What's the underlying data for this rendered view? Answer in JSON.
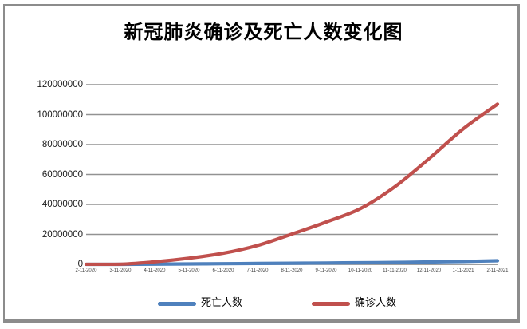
{
  "chart_data": {
    "type": "line",
    "title": "新冠肺炎确诊及死亡人数变化图",
    "categories": [
      "2-11-2020",
      "3-11-2020",
      "4-11-2020",
      "5-11-2020",
      "6-11-2020",
      "7-11-2020",
      "8-11-2020",
      "9-11-2020",
      "10-11-2020",
      "11-11-2020",
      "12-11-2020",
      "1-11-2021",
      "2-11-2021"
    ],
    "series": [
      {
        "key": "deaths",
        "name": "死亡人数",
        "color": "#4F81BD",
        "values": [
          1100,
          4300,
          102000,
          283000,
          420000,
          560000,
          737000,
          905000,
          1070000,
          1260000,
          1590000,
          1940000,
          2400000
        ]
      },
      {
        "key": "confirmed",
        "name": "确诊人数",
        "color": "#C0504D",
        "values": [
          45000,
          118000,
          1700000,
          4100000,
          7400000,
          12600000,
          20200000,
          28200000,
          37200000,
          51700000,
          70500000,
          90500000,
          107000000
        ]
      }
    ],
    "xlabel": "",
    "ylabel": "",
    "ylim": [
      0,
      120000000
    ],
    "yticks": [
      {
        "value": 120000000,
        "label": "120000000"
      },
      {
        "value": 100000000,
        "label": "100000000"
      },
      {
        "value": 80000000,
        "label": "80000000"
      },
      {
        "value": 60000000,
        "label": "60000000"
      },
      {
        "value": 40000000,
        "label": "40000000"
      },
      {
        "value": 20000000,
        "label": "20000000"
      },
      {
        "value": 0,
        "label": "0"
      }
    ],
    "grid": "horizontal",
    "legend_position": "bottom",
    "gridline_color": "#929292",
    "axis_color": "#7f7f7f"
  }
}
